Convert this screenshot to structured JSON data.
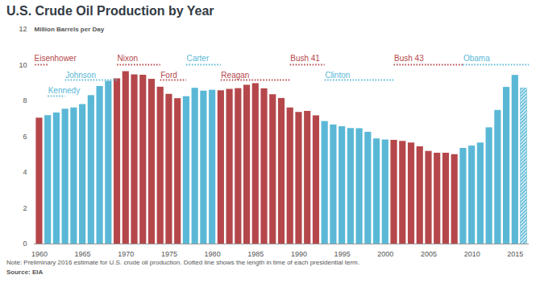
{
  "chart_data": {
    "type": "bar",
    "title": "U.S. Crude Oil Production by Year",
    "ylabel": "Million Barrels per Day",
    "note": "Note: Preliminary 2016 estimate for U.S. crude oil production. Dotted line shows the length in time of each presidential term.",
    "source": "Source: EIA",
    "x": [
      1960,
      1961,
      1962,
      1963,
      1964,
      1965,
      1966,
      1967,
      1968,
      1969,
      1970,
      1971,
      1972,
      1973,
      1974,
      1975,
      1976,
      1977,
      1978,
      1979,
      1980,
      1981,
      1982,
      1983,
      1984,
      1985,
      1986,
      1987,
      1988,
      1989,
      1990,
      1991,
      1992,
      1993,
      1994,
      1995,
      1996,
      1997,
      1998,
      1999,
      2000,
      2001,
      2002,
      2003,
      2004,
      2005,
      2006,
      2007,
      2008,
      2009,
      2010,
      2011,
      2012,
      2013,
      2014,
      2015,
      2016
    ],
    "values": [
      7.04,
      7.18,
      7.33,
      7.54,
      7.61,
      7.8,
      8.3,
      8.81,
      9.1,
      9.24,
      9.64,
      9.46,
      9.44,
      9.21,
      8.77,
      8.37,
      8.13,
      8.24,
      8.71,
      8.55,
      8.6,
      8.57,
      8.65,
      8.69,
      8.88,
      8.97,
      8.68,
      8.35,
      8.14,
      7.61,
      7.36,
      7.42,
      7.17,
      6.85,
      6.66,
      6.56,
      6.46,
      6.45,
      6.25,
      5.88,
      5.82,
      5.8,
      5.74,
      5.65,
      5.44,
      5.18,
      5.08,
      5.08,
      5.0,
      5.35,
      5.48,
      5.65,
      6.5,
      7.47,
      8.76,
      9.43,
      8.7
    ],
    "colors": [
      "#b5474b",
      "#5ab8d6",
      "#5ab8d6",
      "#5ab8d6",
      "#5ab8d6",
      "#5ab8d6",
      "#5ab8d6",
      "#5ab8d6",
      "#5ab8d6",
      "#b5474b",
      "#b5474b",
      "#b5474b",
      "#b5474b",
      "#b5474b",
      "#b5474b",
      "#b5474b",
      "#b5474b",
      "#5ab8d6",
      "#5ab8d6",
      "#5ab8d6",
      "#5ab8d6",
      "#b5474b",
      "#b5474b",
      "#b5474b",
      "#b5474b",
      "#b5474b",
      "#b5474b",
      "#b5474b",
      "#b5474b",
      "#b5474b",
      "#b5474b",
      "#b5474b",
      "#b5474b",
      "#5ab8d6",
      "#5ab8d6",
      "#5ab8d6",
      "#5ab8d6",
      "#5ab8d6",
      "#5ab8d6",
      "#5ab8d6",
      "#5ab8d6",
      "#b5474b",
      "#b5474b",
      "#b5474b",
      "#b5474b",
      "#b5474b",
      "#b5474b",
      "#b5474b",
      "#b5474b",
      "#5ab8d6",
      "#5ab8d6",
      "#5ab8d6",
      "#5ab8d6",
      "#5ab8d6",
      "#5ab8d6",
      "#5ab8d6",
      "#5ab8d6"
    ],
    "xlim": [
      1959.4,
      2016.6
    ],
    "xticks": [
      1960,
      1965,
      1970,
      1975,
      1980,
      1985,
      1990,
      1995,
      2000,
      2005,
      2010,
      2015
    ],
    "ylim": [
      0,
      12
    ],
    "yticks": [
      0,
      2,
      4,
      6,
      8,
      10,
      12
    ],
    "grid": false,
    "terms": [
      {
        "name": "Eisenhower",
        "start": 1953,
        "end": 1961,
        "color": "#b5474b"
      },
      {
        "name": "Kennedy",
        "start": 1961,
        "end": 1963,
        "color": "#5ab8d6"
      },
      {
        "name": "Johnson",
        "start": 1963,
        "end": 1969,
        "color": "#5ab8d6"
      },
      {
        "name": "Nixon",
        "start": 1969,
        "end": 1974,
        "color": "#b5474b"
      },
      {
        "name": "Ford",
        "start": 1974,
        "end": 1977,
        "color": "#b5474b"
      },
      {
        "name": "Carter",
        "start": 1977,
        "end": 1981,
        "color": "#5ab8d6"
      },
      {
        "name": "Reagan",
        "start": 1981,
        "end": 1989,
        "color": "#b5474b"
      },
      {
        "name": "Bush 41",
        "start": 1989,
        "end": 1993,
        "color": "#b5474b"
      },
      {
        "name": "Clinton",
        "start": 1993,
        "end": 2001,
        "color": "#5ab8d6"
      },
      {
        "name": "Bush 43",
        "start": 2001,
        "end": 2009,
        "color": "#b5474b"
      },
      {
        "name": "Obama",
        "start": 2009,
        "end": 2017,
        "color": "#5ab8d6"
      }
    ]
  }
}
